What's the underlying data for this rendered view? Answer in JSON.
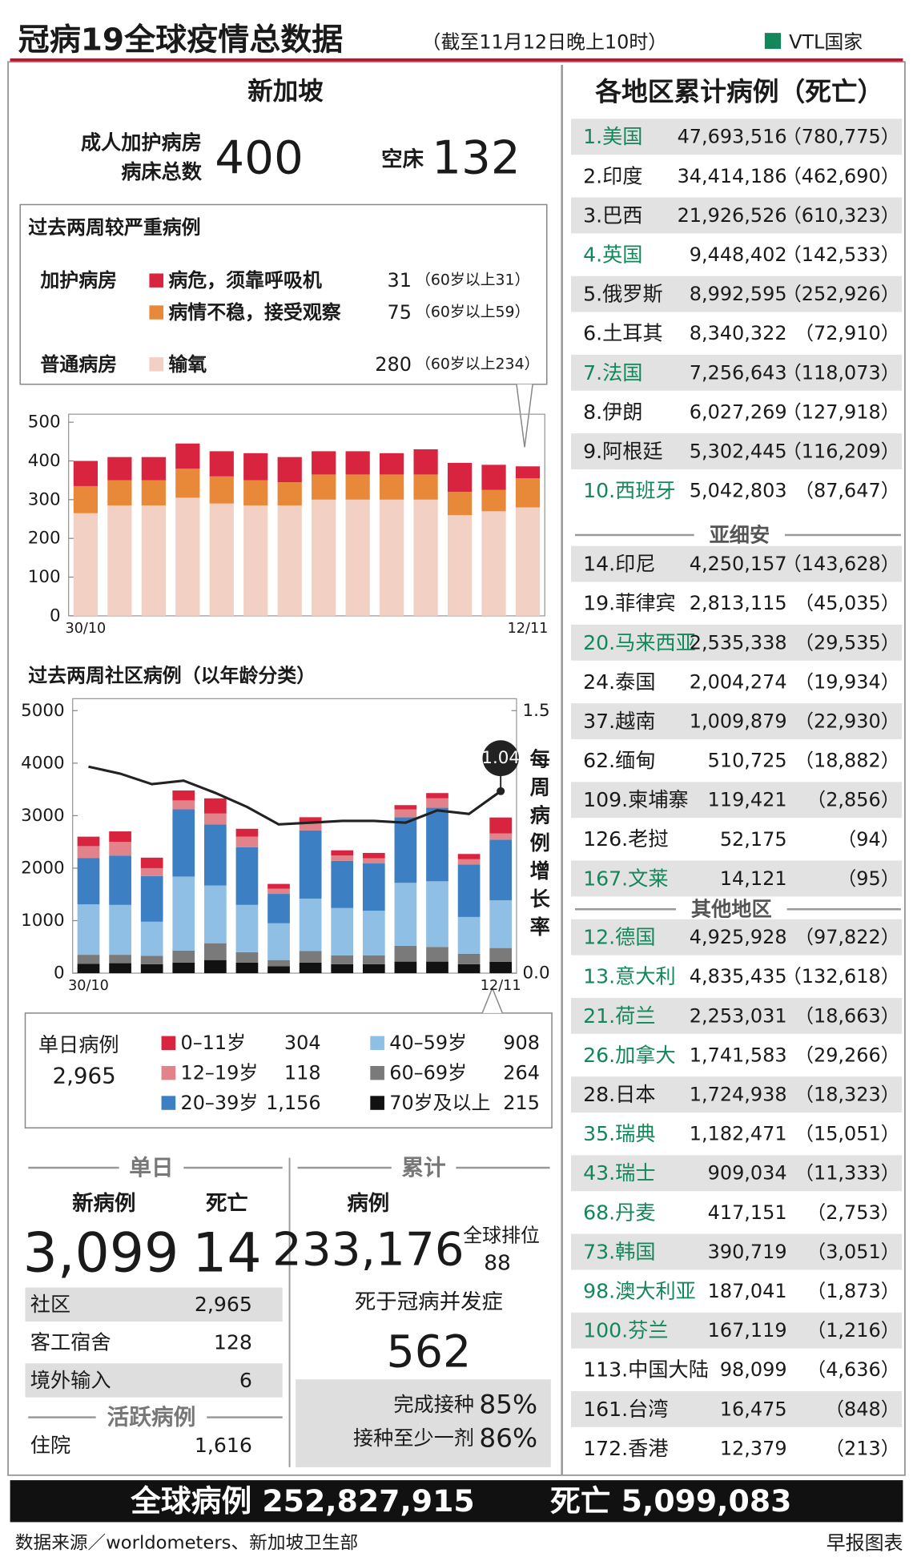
{
  "header": {
    "title": "冠病19全球疫情总数据",
    "date": "（截至11月12日晚上10时）",
    "vtl_legend": "VTL国家",
    "vtl_color": "#13875a"
  },
  "singapore": {
    "title": "新加坡",
    "icu_label": [
      "成人加护病房",
      "病床总数"
    ],
    "icu_total": "400",
    "empty_label": "空床",
    "empty_beds": "132"
  },
  "chart_data": [
    {
      "type": "bar",
      "stacked": true,
      "title": "过去两周较严重病例",
      "ward_labels": [
        "加护病房",
        "普通病房"
      ],
      "categories": [
        "30/10",
        null,
        null,
        null,
        null,
        null,
        null,
        null,
        null,
        null,
        null,
        null,
        null,
        "12/11"
      ],
      "ylim": [
        0,
        500
      ],
      "yticks": [
        0,
        100,
        200,
        300,
        400,
        500
      ],
      "series": [
        {
          "name": "病危，须靠呼吸机",
          "color": "#d9243f",
          "note": "（60岁以上31）",
          "values": [
            65,
            60,
            60,
            65,
            65,
            70,
            65,
            60,
            60,
            55,
            65,
            75,
            65,
            31
          ]
        },
        {
          "name": "病情不稳，接受观察",
          "color": "#e8893a",
          "note": "（60岁以上59）",
          "values": [
            70,
            65,
            65,
            75,
            70,
            65,
            60,
            65,
            65,
            65,
            65,
            60,
            55,
            75
          ]
        },
        {
          "name": "输氧",
          "color": "#f3d0c4",
          "note": "（60岁以上234）",
          "values": [
            265,
            285,
            285,
            305,
            290,
            285,
            285,
            300,
            300,
            300,
            300,
            260,
            270,
            280
          ]
        }
      ]
    },
    {
      "type": "bar",
      "stacked": true,
      "title": "过去两周社区病例（以年龄分类）",
      "legend_title": "单日病例",
      "legend_total": "2,965",
      "categories": [
        "30/10",
        null,
        null,
        null,
        null,
        null,
        null,
        null,
        null,
        null,
        null,
        null,
        null,
        "12/11"
      ],
      "ylim": [
        0,
        5000
      ],
      "yticks": [
        0,
        1000,
        2000,
        3000,
        4000,
        5000
      ],
      "y2lim": [
        0,
        1.5
      ],
      "y2ticks": [
        {
          "value": 0,
          "label": "0.0"
        },
        1.5
      ],
      "series": [
        {
          "name": "0–11岁",
          "color": "#d9243f",
          "values": [
            180,
            200,
            200,
            190,
            290,
            150,
            90,
            100,
            100,
            100,
            80,
            100,
            100,
            304
          ]
        },
        {
          "name": "12–19岁",
          "color": "#e2828a",
          "values": [
            230,
            260,
            150,
            170,
            210,
            200,
            100,
            150,
            100,
            100,
            150,
            180,
            100,
            118
          ]
        },
        {
          "name": "20–39岁",
          "color": "#3c7fc2",
          "values": [
            880,
            940,
            870,
            1280,
            1160,
            1100,
            560,
            1300,
            900,
            900,
            1250,
            1400,
            1000,
            1156
          ],
          "value_labels": [
            null,
            null,
            null,
            null,
            null,
            null,
            null,
            null,
            null,
            null,
            null,
            null,
            null,
            "1,156"
          ]
        },
        {
          "name": "40–59岁",
          "color": "#8fbfe4",
          "values": [
            960,
            950,
            650,
            1410,
            1100,
            900,
            700,
            1000,
            900,
            850,
            1200,
            1250,
            700,
            908
          ]
        },
        {
          "name": "60–69岁",
          "color": "#7a7a7a",
          "values": [
            170,
            160,
            160,
            230,
            320,
            200,
            120,
            220,
            170,
            170,
            300,
            280,
            200,
            264
          ]
        },
        {
          "name": "70岁及以上",
          "color": "#111111",
          "values": [
            180,
            190,
            170,
            200,
            250,
            200,
            130,
            200,
            170,
            170,
            220,
            220,
            170,
            215
          ]
        },
        {
          "name": "每周病例增长率",
          "type": "line",
          "axis": "y2",
          "color": "#222222",
          "values": [
            1.18,
            1.14,
            1.08,
            1.1,
            1.03,
            0.95,
            0.85,
            0.86,
            0.87,
            0.87,
            0.86,
            0.93,
            0.91,
            1.04
          ]
        }
      ]
    }
  ],
  "daily": {
    "title": "单日",
    "new_cases_label": "新病例",
    "new_cases": "3,099",
    "deaths_label": "死亡",
    "deaths": "14",
    "rows": [
      [
        "社区",
        "2,965"
      ],
      [
        "客工宿舍",
        "128"
      ],
      [
        "境外输入",
        "6"
      ]
    ],
    "active_title": "活跃病例",
    "active_rows": [
      [
        "住院",
        "1,616"
      ]
    ]
  },
  "cumulative": {
    "title": "累计",
    "cases_label": "病例",
    "cases": "233,176",
    "rank_label": "全球排位",
    "rank": "88",
    "complication_label": "死于冠病并发症",
    "complication_deaths": "562",
    "vaccination": [
      [
        "完成接种",
        "85%"
      ],
      [
        "接种至少一剂",
        "86%"
      ]
    ]
  },
  "regions": {
    "title": "各地区累计病例（死亡）",
    "top": [
      [
        "1.美国",
        "47,693,516",
        "（780,775）",
        true
      ],
      [
        "2.印度",
        "34,414,186",
        "（462,690）",
        false
      ],
      [
        "3.巴西",
        "21,926,526",
        "（610,323）",
        false
      ],
      [
        "4.英国",
        "9,448,402",
        "（142,533）",
        true
      ],
      [
        "5.俄罗斯",
        "8,992,595",
        "（252,926）",
        false
      ],
      [
        "6.土耳其",
        "8,340,322",
        "（72,910）",
        false
      ],
      [
        "7.法国",
        "7,256,643",
        "（118,073）",
        true
      ],
      [
        "8.伊朗",
        "6,027,269",
        "（127,918）",
        false
      ],
      [
        "9.阿根廷",
        "5,302,445",
        "（116,209）",
        false
      ],
      [
        "10.西班牙",
        "5,042,803",
        "（87,647）",
        true
      ]
    ],
    "asean": {
      "title": "亚细安",
      "rows": [
        [
          "14.印尼",
          "4,250,157",
          "（143,628）",
          false
        ],
        [
          "19.菲律宾",
          "2,813,115",
          "（45,035）",
          false
        ],
        [
          "20.马来西亚",
          "2,535,338",
          "（29,535）",
          true
        ],
        [
          "24.泰国",
          "2,004,274",
          "（19,934）",
          false
        ],
        [
          "37.越南",
          "1,009,879",
          "（22,930）",
          false
        ],
        [
          "62.缅甸",
          "510,725",
          "（18,882）",
          false
        ],
        [
          "109.柬埔寨",
          "119,421",
          "（2,856）",
          false
        ],
        [
          "126.老挝",
          "52,175",
          "（94）",
          false
        ],
        [
          "167.文莱",
          "14,121",
          "（95）",
          true
        ]
      ]
    },
    "others": {
      "title": "其他地区",
      "rows": [
        [
          "12.德国",
          "4,925,928",
          "（97,822）",
          true
        ],
        [
          "13.意大利",
          "4,835,435",
          "（132,618）",
          true
        ],
        [
          "21.荷兰",
          "2,253,031",
          "（18,663）",
          true
        ],
        [
          "26.加拿大",
          "1,741,583",
          "（29,266）",
          true
        ],
        [
          "28.日本",
          "1,724,938",
          "（18,323）",
          false
        ],
        [
          "35.瑞典",
          "1,182,471",
          "（15,051）",
          true
        ],
        [
          "43.瑞士",
          "909,034",
          "（11,333）",
          true
        ],
        [
          "68.丹麦",
          "417,151",
          "（2,753）",
          true
        ],
        [
          "73.韩国",
          "390,719",
          "（3,051）",
          true
        ],
        [
          "98.澳大利亚",
          "187,041",
          "（1,873）",
          true
        ],
        [
          "100.芬兰",
          "167,119",
          "（1,216）",
          true
        ],
        [
          "113.中国大陆",
          "98,099",
          "（4,636）",
          false
        ],
        [
          "161.台湾",
          "16,475",
          "（848）",
          false
        ],
        [
          "172.香港",
          "12,379",
          "（213）",
          false
        ]
      ]
    }
  },
  "footer": {
    "global_cases": "全球病例 252,827,915",
    "global_deaths": "死亡 5,099,083",
    "source": "数据来源／worldometers、新加坡卫生部",
    "credit": "早报图表"
  }
}
